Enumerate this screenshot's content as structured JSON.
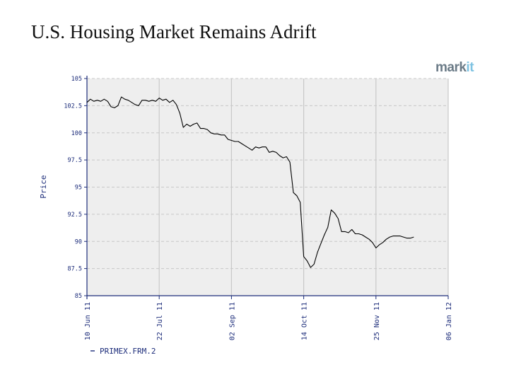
{
  "slide": {
    "title": "U.S. Housing Market Remains Adrift",
    "logo_text_1": "mark",
    "logo_text_2": "it"
  },
  "colors": {
    "plot_background": "#eeeeee",
    "grid": "#c8c8c8",
    "axis_text": "#1c2c7a",
    "line": "#000000"
  },
  "chart_data": {
    "type": "line",
    "title": "",
    "xlabel": "",
    "ylabel": "Price",
    "x_is_date": true,
    "xlim": [
      "2011-06-10",
      "2012-01-06"
    ],
    "ylim": [
      85,
      105
    ],
    "yticks": [
      85,
      87.5,
      90,
      92.5,
      95,
      97.5,
      100,
      102.5,
      105
    ],
    "ytick_labels": [
      "85",
      "87.5",
      "90",
      "92.5",
      "95",
      "97.5",
      "100",
      "102.5",
      "105"
    ],
    "xticks": [
      "2011-06-10",
      "2011-07-22",
      "2011-09-02",
      "2011-10-14",
      "2011-11-25",
      "2012-01-06"
    ],
    "xtick_labels": [
      "10 Jun 11",
      "22 Jul 11",
      "02 Sep 11",
      "14 Oct 11",
      "25 Nov 11",
      "06 Jan 12"
    ],
    "grid": true,
    "legend_position": "bottom-left",
    "series": [
      {
        "name": "PRIMEX.FRM.2",
        "points": [
          [
            "2011-06-10",
            102.8
          ],
          [
            "2011-06-12",
            103.1
          ],
          [
            "2011-06-14",
            102.9
          ],
          [
            "2011-06-16",
            103.0
          ],
          [
            "2011-06-18",
            102.9
          ],
          [
            "2011-06-20",
            103.1
          ],
          [
            "2011-06-22",
            102.9
          ],
          [
            "2011-06-24",
            102.4
          ],
          [
            "2011-06-26",
            102.3
          ],
          [
            "2011-06-28",
            102.5
          ],
          [
            "2011-06-30",
            103.3
          ],
          [
            "2011-07-02",
            103.1
          ],
          [
            "2011-07-04",
            103.0
          ],
          [
            "2011-07-06",
            102.8
          ],
          [
            "2011-07-08",
            102.6
          ],
          [
            "2011-07-10",
            102.5
          ],
          [
            "2011-07-12",
            103.0
          ],
          [
            "2011-07-14",
            103.0
          ],
          [
            "2011-07-16",
            102.9
          ],
          [
            "2011-07-18",
            103.0
          ],
          [
            "2011-07-20",
            102.9
          ],
          [
            "2011-07-22",
            103.2
          ],
          [
            "2011-07-24",
            103.0
          ],
          [
            "2011-07-26",
            103.1
          ],
          [
            "2011-07-28",
            102.8
          ],
          [
            "2011-07-30",
            103.0
          ],
          [
            "2011-08-01",
            102.6
          ],
          [
            "2011-08-03",
            101.8
          ],
          [
            "2011-08-05",
            100.5
          ],
          [
            "2011-08-07",
            100.8
          ],
          [
            "2011-08-09",
            100.6
          ],
          [
            "2011-08-11",
            100.8
          ],
          [
            "2011-08-13",
            100.9
          ],
          [
            "2011-08-15",
            100.4
          ],
          [
            "2011-08-17",
            100.4
          ],
          [
            "2011-08-19",
            100.3
          ],
          [
            "2011-08-21",
            100.0
          ],
          [
            "2011-08-23",
            99.9
          ],
          [
            "2011-08-25",
            99.9
          ],
          [
            "2011-08-27",
            99.8
          ],
          [
            "2011-08-29",
            99.8
          ],
          [
            "2011-08-31",
            99.4
          ],
          [
            "2011-09-02",
            99.3
          ],
          [
            "2011-09-04",
            99.2
          ],
          [
            "2011-09-06",
            99.2
          ],
          [
            "2011-09-08",
            99.0
          ],
          [
            "2011-09-10",
            98.8
          ],
          [
            "2011-09-12",
            98.6
          ],
          [
            "2011-09-14",
            98.4
          ],
          [
            "2011-09-16",
            98.7
          ],
          [
            "2011-09-18",
            98.6
          ],
          [
            "2011-09-20",
            98.7
          ],
          [
            "2011-09-22",
            98.7
          ],
          [
            "2011-09-24",
            98.2
          ],
          [
            "2011-09-26",
            98.3
          ],
          [
            "2011-09-28",
            98.2
          ],
          [
            "2011-09-30",
            97.9
          ],
          [
            "2011-10-02",
            97.7
          ],
          [
            "2011-10-04",
            97.8
          ],
          [
            "2011-10-06",
            97.3
          ],
          [
            "2011-10-08",
            94.5
          ],
          [
            "2011-10-10",
            94.2
          ],
          [
            "2011-10-12",
            93.6
          ],
          [
            "2011-10-14",
            88.6
          ],
          [
            "2011-10-16",
            88.2
          ],
          [
            "2011-10-18",
            87.6
          ],
          [
            "2011-10-20",
            87.9
          ],
          [
            "2011-10-22",
            89.0
          ],
          [
            "2011-10-24",
            89.8
          ],
          [
            "2011-10-26",
            90.6
          ],
          [
            "2011-10-28",
            91.3
          ],
          [
            "2011-10-30",
            92.9
          ],
          [
            "2011-11-01",
            92.6
          ],
          [
            "2011-11-03",
            92.1
          ],
          [
            "2011-11-05",
            90.9
          ],
          [
            "2011-11-07",
            90.9
          ],
          [
            "2011-11-09",
            90.8
          ],
          [
            "2011-11-11",
            91.1
          ],
          [
            "2011-11-13",
            90.7
          ],
          [
            "2011-11-15",
            90.7
          ],
          [
            "2011-11-17",
            90.6
          ],
          [
            "2011-11-19",
            90.4
          ],
          [
            "2011-11-21",
            90.2
          ],
          [
            "2011-11-23",
            89.9
          ],
          [
            "2011-11-25",
            89.4
          ],
          [
            "2011-11-27",
            89.7
          ],
          [
            "2011-11-29",
            89.9
          ],
          [
            "2011-12-01",
            90.2
          ],
          [
            "2011-12-03",
            90.4
          ],
          [
            "2011-12-05",
            90.5
          ],
          [
            "2011-12-07",
            90.5
          ],
          [
            "2011-12-09",
            90.5
          ],
          [
            "2011-12-11",
            90.4
          ],
          [
            "2011-12-13",
            90.3
          ],
          [
            "2011-12-15",
            90.3
          ],
          [
            "2011-12-17",
            90.4
          ]
        ]
      }
    ]
  }
}
